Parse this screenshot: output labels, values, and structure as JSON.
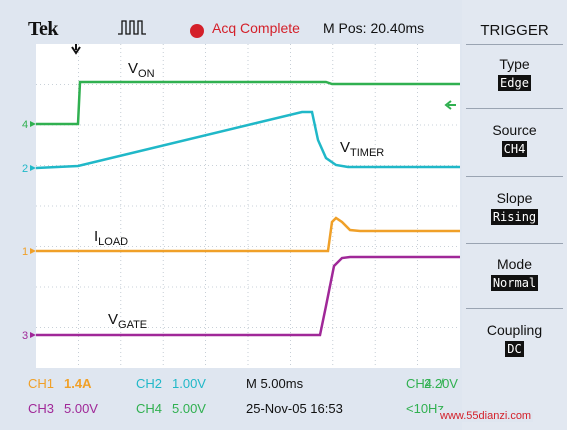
{
  "header": {
    "brand": "Tek",
    "acq_status": "Acq Complete",
    "m_pos": "M Pos: 20.40ms"
  },
  "colors": {
    "ch1": "#f0a028",
    "ch2": "#20b8c8",
    "ch3": "#a02898",
    "ch4": "#30b050",
    "acq": "#d4202a"
  },
  "waveforms": {
    "von": {
      "label": "V",
      "sub": "ON"
    },
    "vtimer": {
      "label": "V",
      "sub": "TIMER"
    },
    "iload": {
      "label": "I",
      "sub": "LOAD"
    },
    "vgate": {
      "label": "V",
      "sub": "GATE"
    }
  },
  "markers": {
    "ch4": "4",
    "ch2": "2",
    "ch1": "1",
    "ch3": "3"
  },
  "side_menu": {
    "title": "TRIGGER",
    "items": [
      {
        "label": "Type",
        "value": "Edge"
      },
      {
        "label": "Source",
        "value": "CH4"
      },
      {
        "label": "Slope",
        "value": "Rising"
      },
      {
        "label": "Mode",
        "value": "Normal"
      },
      {
        "label": "Coupling",
        "value": "DC"
      }
    ]
  },
  "status": {
    "ch1_name": "CH1",
    "ch1_scale": "1.4A",
    "ch2_name": "CH2",
    "ch2_scale": "1.00V",
    "timebase": "M 5.00ms",
    "ch4_trig_name": "CH4",
    "trig_slope": "/",
    "trig_level": "2.20V",
    "ch3_name": "CH3",
    "ch3_scale": "5.00V",
    "ch4_name": "CH4",
    "ch4_scale": "5.00V",
    "datetime": "25-Nov-05 16:53",
    "freq": "<10Hz"
  },
  "watermark": "www.55dianzi.com"
}
